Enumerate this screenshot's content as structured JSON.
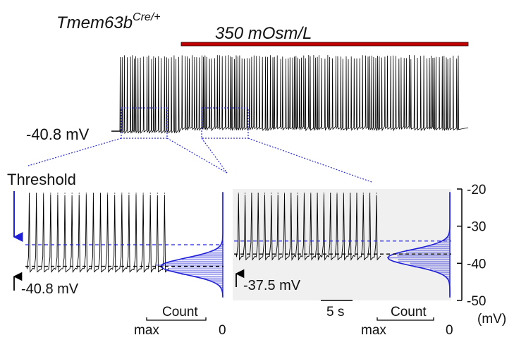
{
  "genotype": {
    "base": "Tmem63b",
    "sup": "Cre/+"
  },
  "stimulus": {
    "label": "350 mOsm/L",
    "bar_color": "#c00000"
  },
  "top_trace": {
    "baseline_label": "-40.8 mV",
    "baseline_mv": -40.8,
    "spike_count": 140
  },
  "threshold_label": "Threshold",
  "left_panel": {
    "baseline_label": "-40.8 mV",
    "baseline_mv": -40.8,
    "threshold_mv": -35,
    "histogram_peak_mv": -40.8,
    "spike_count": 20,
    "background": "#ffffff",
    "count_label": "Count",
    "count_max_label": "max",
    "count_zero_label": "0"
  },
  "right_panel": {
    "baseline_label": "-37.5 mV",
    "baseline_mv": -37.5,
    "threshold_mv": -34,
    "histogram_peak_mv": -38.5,
    "spike_count": 22,
    "background": "#f0f0f0",
    "count_label": "Count",
    "count_max_label": "max",
    "count_zero_label": "0"
  },
  "scale_bar": {
    "label": "5 s"
  },
  "colors": {
    "trace": "#000000",
    "threshold_line": "#2020e0",
    "baseline_line": "#000000",
    "histogram": "#1f1fd8",
    "zoom_box": "#2a2ad0"
  },
  "chart_data": {
    "type": "line",
    "title": "",
    "ylabel": "(mV)",
    "ylim": [
      -50,
      -20
    ],
    "y_ticks": [
      -20,
      -30,
      -40,
      -50
    ],
    "series": [
      {
        "name": "",
        "baseline_mv": -40.8,
        "threshold_mv": -35
      },
      {
        "name": "",
        "baseline_mv": -37.5,
        "threshold_mv": -34
      }
    ]
  }
}
